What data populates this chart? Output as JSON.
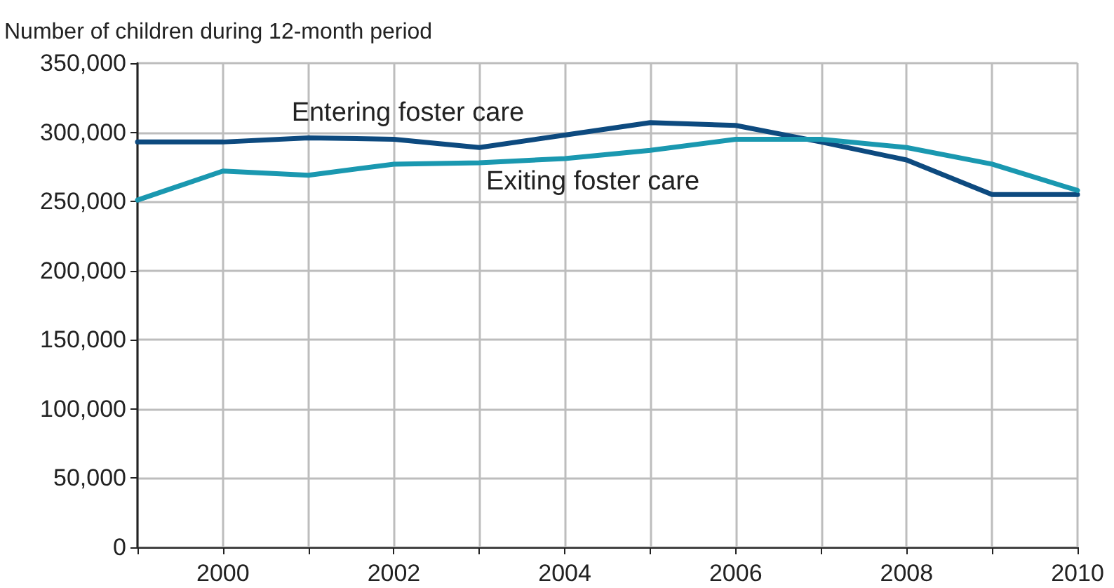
{
  "chart_data": {
    "type": "line",
    "ylabel": "Number of children during 12-month period",
    "x": [
      1999,
      2000,
      2001,
      2002,
      2003,
      2004,
      2005,
      2006,
      2007,
      2008,
      2009,
      2010
    ],
    "series": [
      {
        "name": "Entering foster care",
        "color": "#0d4a7f",
        "values": [
          293000,
          293000,
          296000,
          295000,
          289000,
          298000,
          307000,
          305000,
          293000,
          280000,
          255000,
          255000
        ]
      },
      {
        "name": "Exiting foster care",
        "color": "#1a98b0",
        "values": [
          251000,
          272000,
          269000,
          277000,
          278000,
          281000,
          287000,
          295000,
          295000,
          289000,
          277000,
          258000
        ]
      }
    ],
    "xlim": [
      1999,
      2010
    ],
    "xticks": [
      {
        "value": 1999,
        "label": null
      },
      2000,
      {
        "value": 2001,
        "label": null
      },
      2002,
      {
        "value": 2003,
        "label": null
      },
      2004,
      {
        "value": 2005,
        "label": null
      },
      2006,
      {
        "value": 2007,
        "label": null
      },
      2008,
      {
        "value": 2009,
        "label": null
      },
      2010
    ],
    "ylim": [
      0,
      350000
    ],
    "yticks": [
      0,
      {
        "value": 50000,
        "label": "50,000"
      },
      {
        "value": 100000,
        "label": "100,000"
      },
      {
        "value": 150000,
        "label": "150,000"
      },
      {
        "value": 200000,
        "label": "200,000"
      },
      {
        "value": 250000,
        "label": "250,000"
      },
      {
        "value": 300000,
        "label": "300,000"
      },
      {
        "value": 350000,
        "label": "350,000"
      }
    ],
    "grid": true,
    "legend": false,
    "marker": "none",
    "line_style": "solid"
  }
}
